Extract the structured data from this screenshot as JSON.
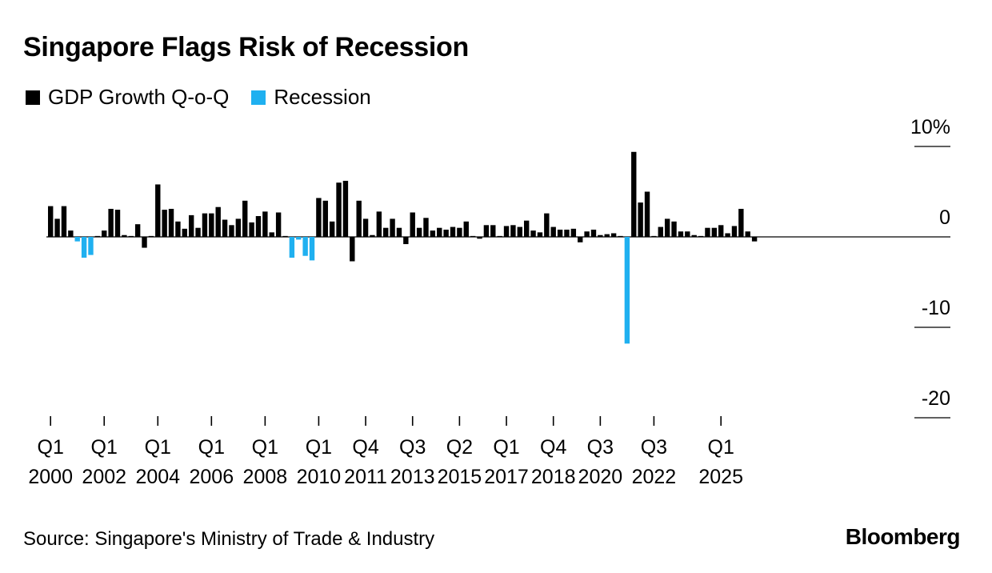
{
  "title": "Singapore Flags Risk of Recession",
  "legend": [
    {
      "label": "GDP Growth Q-o-Q",
      "color": "#000000"
    },
    {
      "label": "Recession",
      "color": "#1fb0f0"
    }
  ],
  "source": "Source: Singapore's Ministry of Trade & Industry",
  "brand": "Bloomberg",
  "chart_data": {
    "type": "bar",
    "title": "Singapore Flags Risk of Recession",
    "xlabel": "",
    "ylabel": "",
    "ylim": [
      -20,
      10
    ],
    "ytick_labels": [
      "10%",
      "0",
      "-10",
      "-20"
    ],
    "yticks": [
      10,
      0,
      -10,
      -20
    ],
    "grid": false,
    "legend_position": "top-left",
    "xtick_labels": [
      {
        "index": 0,
        "q": "Q1",
        "year": "2000"
      },
      {
        "index": 8,
        "q": "Q1",
        "year": "2002"
      },
      {
        "index": 16,
        "q": "Q1",
        "year": "2004"
      },
      {
        "index": 24,
        "q": "Q1",
        "year": "2006"
      },
      {
        "index": 32,
        "q": "Q1",
        "year": "2008"
      },
      {
        "index": 40,
        "q": "Q1",
        "year": "2010"
      },
      {
        "index": 47,
        "q": "Q4",
        "year": "2011"
      },
      {
        "index": 54,
        "q": "Q3",
        "year": "2013"
      },
      {
        "index": 61,
        "q": "Q2",
        "year": "2015"
      },
      {
        "index": 68,
        "q": "Q1",
        "year": "2017"
      },
      {
        "index": 75,
        "q": "Q4",
        "year": "2018"
      },
      {
        "index": 82,
        "q": "Q3",
        "year": "2020"
      },
      {
        "index": 90,
        "q": "Q3",
        "year": "2022"
      },
      {
        "index": 100,
        "q": "Q1",
        "year": "2025"
      }
    ],
    "series": [
      {
        "name": "GDP Growth Q-o-Q",
        "color": "#000000"
      },
      {
        "name": "Recession",
        "color": "#1fb0f0"
      }
    ],
    "values": [
      3.4,
      2.0,
      3.4,
      0.7,
      -0.5,
      -2.3,
      -2.0,
      0.1,
      0.7,
      3.1,
      3.0,
      0.2,
      0.1,
      1.4,
      -1.2,
      0.1,
      5.8,
      3.0,
      3.1,
      1.7,
      0.9,
      2.4,
      1.0,
      2.6,
      2.6,
      3.3,
      1.9,
      1.3,
      2.0,
      4.0,
      1.6,
      2.3,
      2.8,
      0.5,
      2.7,
      0.1,
      -2.3,
      -0.3,
      -2.1,
      -2.6,
      4.3,
      4.0,
      1.7,
      6.0,
      6.2,
      -2.7,
      4.0,
      2.0,
      0.2,
      2.8,
      1.0,
      2.0,
      1.0,
      -0.8,
      2.7,
      1.0,
      2.1,
      0.7,
      1.0,
      0.8,
      1.1,
      1.0,
      1.7,
      0.1,
      -0.2,
      1.3,
      1.3,
      0.1,
      1.2,
      1.3,
      1.1,
      1.8,
      0.7,
      0.5,
      2.6,
      1.1,
      0.8,
      0.8,
      0.9,
      -0.6,
      0.6,
      0.8,
      0.2,
      0.3,
      0.4,
      0.1,
      -11.8,
      9.4,
      3.8,
      5.0,
      0.1,
      1.1,
      2.0,
      1.7,
      0.6,
      0.6,
      0.2,
      0.1,
      1.0,
      1.0,
      1.3,
      0.4,
      1.2,
      3.1,
      0.6,
      -0.5
    ],
    "recession_indices": [
      4,
      5,
      6,
      36,
      37,
      38,
      39,
      86
    ]
  }
}
